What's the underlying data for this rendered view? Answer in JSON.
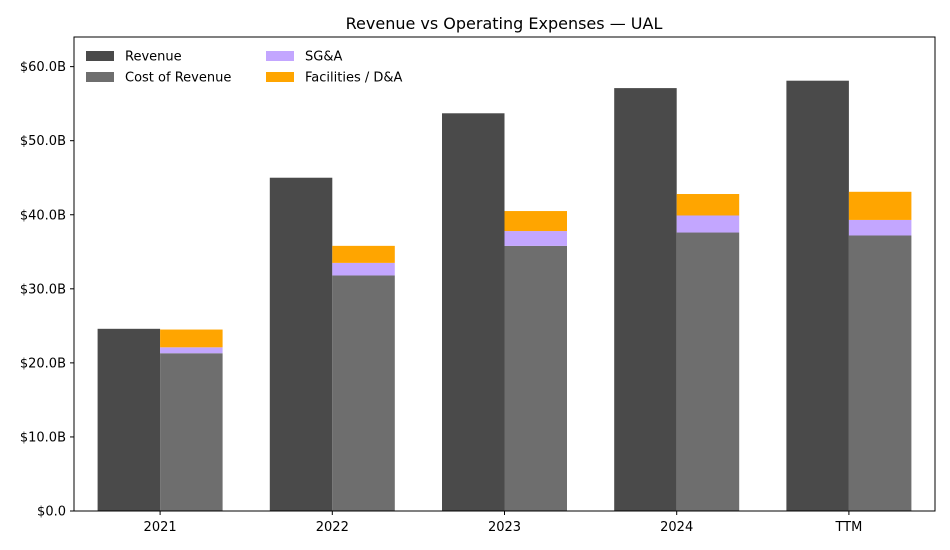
{
  "chart_data": {
    "type": "bar",
    "title": "Revenue vs Operating Expenses — UAL",
    "categories": [
      "2021",
      "2022",
      "2023",
      "2024",
      "TTM"
    ],
    "ylim": [
      0,
      64
    ],
    "y_ticks": [
      0,
      10,
      20,
      30,
      40,
      50,
      60
    ],
    "y_tick_labels": [
      "$0.0",
      "$10.0B",
      "$20.0B",
      "$30.0B",
      "$40.0B",
      "$50.0B",
      "$60.0B"
    ],
    "grid": false,
    "legend_position": "top-left",
    "revenue": {
      "name": "Revenue",
      "color": "#4a4a4a",
      "values": [
        24.6,
        45.0,
        53.7,
        57.1,
        58.1
      ]
    },
    "expense_stack": [
      {
        "name": "Cost of Revenue",
        "color": "#6e6e6e",
        "values": [
          21.3,
          31.8,
          35.8,
          37.6,
          37.2
        ]
      },
      {
        "name": "SG&A",
        "color": "#c3a6ff",
        "values": [
          0.8,
          1.7,
          2.0,
          2.3,
          2.1
        ]
      },
      {
        "name": "Facilities / D&A",
        "color": "#ffa500",
        "values": [
          2.4,
          2.3,
          2.7,
          2.9,
          3.8
        ]
      }
    ]
  }
}
